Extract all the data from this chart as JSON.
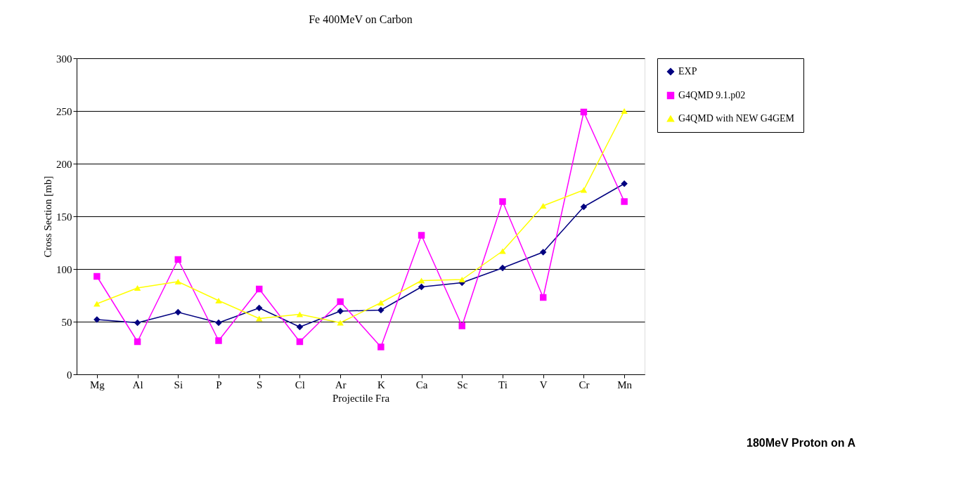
{
  "chart_data": {
    "type": "line",
    "title": "Fe 400MeV on Carbon",
    "xlabel": "Projectile Fra",
    "ylabel": "Cross Section [mb]",
    "categories": [
      "Mg",
      "Al",
      "Si",
      "P",
      "S",
      "Cl",
      "Ar",
      "K",
      "Ca",
      "Sc",
      "Ti",
      "V",
      "Cr",
      "Mn"
    ],
    "series": [
      {
        "name": "EXP",
        "color": "#000080",
        "marker": "diamond",
        "values": [
          52,
          49,
          59,
          49,
          63,
          45,
          60,
          61,
          83,
          87,
          101,
          116,
          159,
          181
        ]
      },
      {
        "name": "G4QMD 9.1.p02",
        "color": "#ff00ff",
        "marker": "square",
        "values": [
          93,
          31,
          109,
          32,
          81,
          31,
          69,
          26,
          132,
          46,
          164,
          73,
          249,
          164
        ]
      },
      {
        "name": "G4QMD with NEW G4GEM",
        "color": "#ffff00",
        "marker": "triangle",
        "values": [
          67,
          82,
          88,
          70,
          53,
          57,
          49,
          68,
          89,
          90,
          117,
          160,
          175,
          250
        ]
      }
    ],
    "ylim": [
      0,
      300
    ],
    "yticks": [
      0,
      50,
      100,
      150,
      200,
      250,
      300
    ],
    "grid": "y",
    "legend": "right",
    "annotations": [
      "180MeV Proton on A"
    ]
  }
}
